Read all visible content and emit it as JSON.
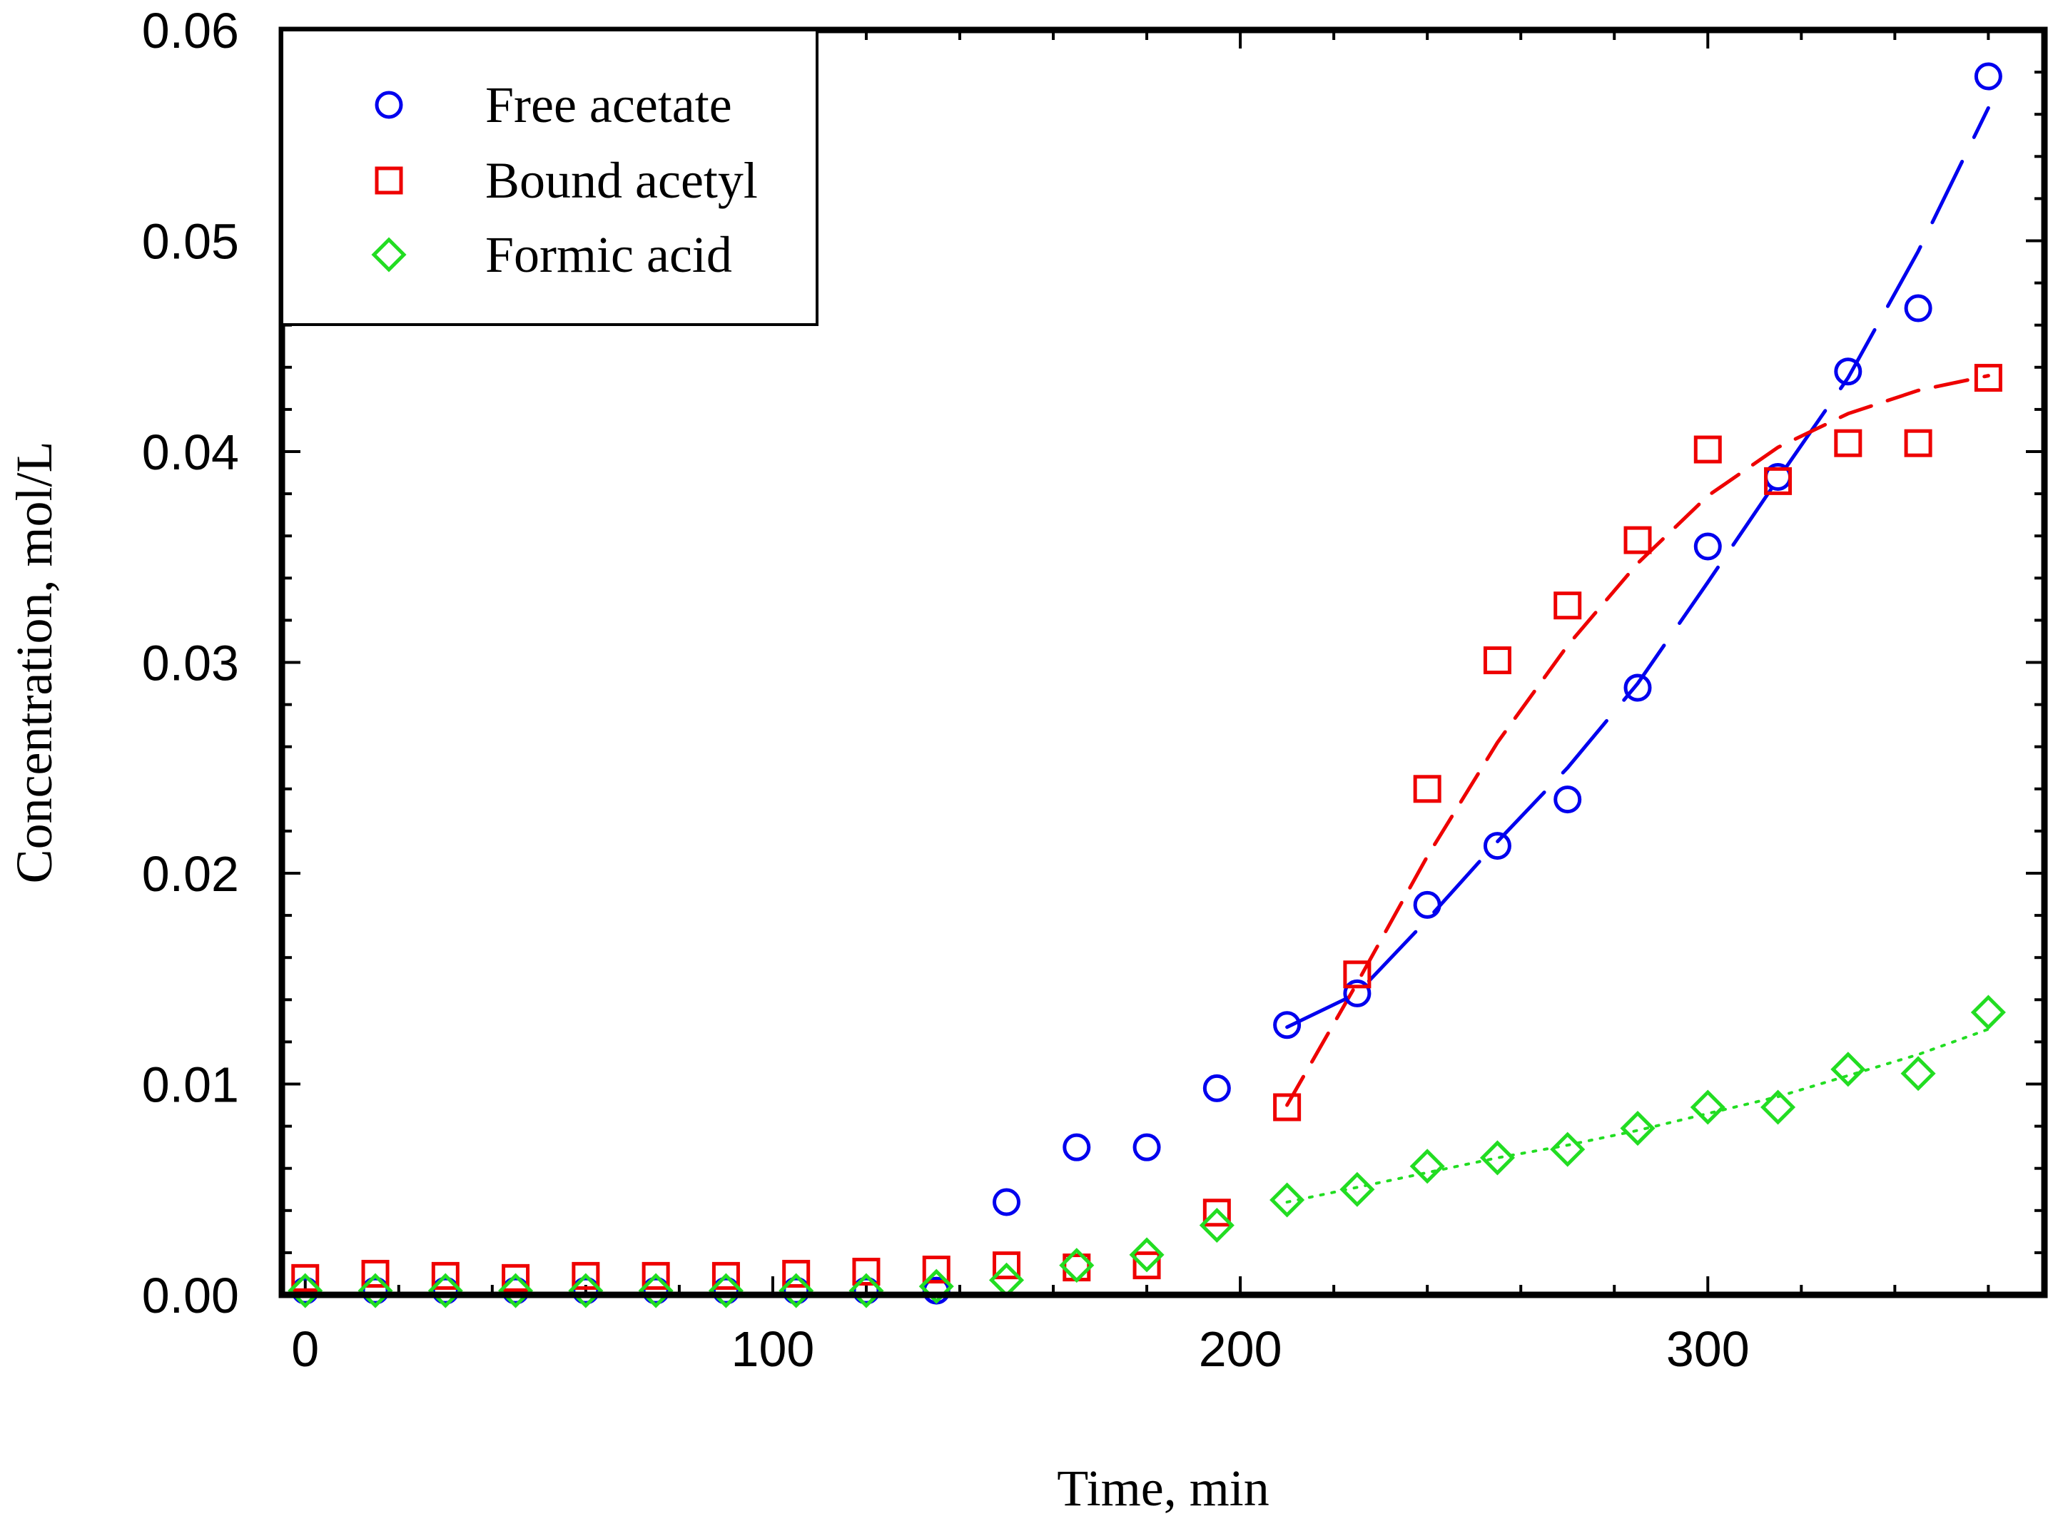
{
  "chart_data": {
    "type": "scatter",
    "title": "",
    "xlabel": "Time, min",
    "ylabel": "Concentration, mol/L",
    "xlim": [
      -5,
      372
    ],
    "ylim": [
      0,
      0.06
    ],
    "x_ticks": [
      0,
      100,
      200,
      300
    ],
    "x_tick_labels": [
      "0",
      "100",
      "200",
      "300"
    ],
    "y_ticks": [
      0,
      0.01,
      0.02,
      0.03,
      0.04,
      0.05,
      0.06
    ],
    "y_tick_labels": [
      "0.00",
      "0.01",
      "0.02",
      "0.03",
      "0.04",
      "0.05",
      "0.06"
    ],
    "grid": false,
    "legend_position": "top-left",
    "series": [
      {
        "name": "Free acetate",
        "marker": "circle",
        "color": "#0000ee",
        "points": [
          [
            0,
            0.0002
          ],
          [
            15,
            0.0002
          ],
          [
            30,
            0.0002
          ],
          [
            45,
            0.0002
          ],
          [
            60,
            0.0002
          ],
          [
            75,
            0.0002
          ],
          [
            90,
            0.0002
          ],
          [
            105,
            0.0002
          ],
          [
            120,
            0.0002
          ],
          [
            135,
            0.0002
          ],
          [
            150,
            0.0044
          ],
          [
            165,
            0.007
          ],
          [
            180,
            0.007
          ],
          [
            195,
            0.0098
          ],
          [
            210,
            0.0128
          ],
          [
            225,
            0.0143
          ],
          [
            240,
            0.0185
          ],
          [
            255,
            0.0213
          ],
          [
            270,
            0.0235
          ],
          [
            285,
            0.0288
          ],
          [
            300,
            0.0355
          ],
          [
            315,
            0.0388
          ],
          [
            330,
            0.0438
          ],
          [
            345,
            0.0468
          ],
          [
            360,
            0.0578
          ]
        ],
        "fit": {
          "style": "long-dash",
          "points": [
            [
              210,
              0.0127
            ],
            [
              225,
              0.0143
            ],
            [
              240,
              0.0178
            ],
            [
              255,
              0.0215
            ],
            [
              270,
              0.025
            ],
            [
              285,
              0.029
            ],
            [
              300,
              0.0338
            ],
            [
              315,
              0.0387
            ],
            [
              330,
              0.0435
            ],
            [
              345,
              0.0495
            ],
            [
              360,
              0.0563
            ]
          ]
        }
      },
      {
        "name": "Bound acetyl",
        "marker": "square",
        "color": "#ee0000",
        "points": [
          [
            0,
            0.0008
          ],
          [
            15,
            0.001
          ],
          [
            30,
            0.0009
          ],
          [
            45,
            0.0008
          ],
          [
            60,
            0.0009
          ],
          [
            75,
            0.0009
          ],
          [
            90,
            0.0009
          ],
          [
            105,
            0.001
          ],
          [
            120,
            0.0011
          ],
          [
            135,
            0.0012
          ],
          [
            150,
            0.0014
          ],
          [
            165,
            0.0013
          ],
          [
            180,
            0.0014
          ],
          [
            195,
            0.0039
          ],
          [
            210,
            0.0089
          ],
          [
            225,
            0.0152
          ],
          [
            240,
            0.024
          ],
          [
            255,
            0.0301
          ],
          [
            270,
            0.0327
          ],
          [
            285,
            0.0358
          ],
          [
            300,
            0.0401
          ],
          [
            315,
            0.0386
          ],
          [
            330,
            0.0404
          ],
          [
            345,
            0.0404
          ],
          [
            360,
            0.0435
          ]
        ],
        "fit": {
          "style": "dash",
          "points": [
            [
              210,
              0.009
            ],
            [
              225,
              0.0148
            ],
            [
              240,
              0.0208
            ],
            [
              255,
              0.0262
            ],
            [
              270,
              0.0308
            ],
            [
              285,
              0.0347
            ],
            [
              300,
              0.0379
            ],
            [
              315,
              0.0402
            ],
            [
              330,
              0.0418
            ],
            [
              345,
              0.0429
            ],
            [
              360,
              0.0436
            ]
          ]
        }
      },
      {
        "name": "Formic acid",
        "marker": "diamond",
        "color": "#22dd22",
        "points": [
          [
            0,
            0.0002
          ],
          [
            15,
            0.0002
          ],
          [
            30,
            0.0002
          ],
          [
            45,
            0.0002
          ],
          [
            60,
            0.0002
          ],
          [
            75,
            0.0002
          ],
          [
            90,
            0.0002
          ],
          [
            105,
            0.0002
          ],
          [
            120,
            0.0002
          ],
          [
            135,
            0.0004
          ],
          [
            150,
            0.0007
          ],
          [
            165,
            0.0014
          ],
          [
            180,
            0.0019
          ],
          [
            195,
            0.0033
          ],
          [
            210,
            0.0045
          ],
          [
            225,
            0.005
          ],
          [
            240,
            0.0061
          ],
          [
            255,
            0.0065
          ],
          [
            270,
            0.0069
          ],
          [
            285,
            0.0079
          ],
          [
            300,
            0.0089
          ],
          [
            315,
            0.0089
          ],
          [
            330,
            0.0107
          ],
          [
            345,
            0.0105
          ],
          [
            360,
            0.0134
          ]
        ],
        "fit": {
          "style": "dot",
          "points": [
            [
              210,
              0.0044
            ],
            [
              225,
              0.0051
            ],
            [
              240,
              0.0058
            ],
            [
              255,
              0.0065
            ],
            [
              270,
              0.0071
            ],
            [
              285,
              0.0078
            ],
            [
              300,
              0.0086
            ],
            [
              315,
              0.0094
            ],
            [
              330,
              0.0104
            ],
            [
              345,
              0.0114
            ],
            [
              360,
              0.0126
            ]
          ]
        }
      }
    ]
  }
}
